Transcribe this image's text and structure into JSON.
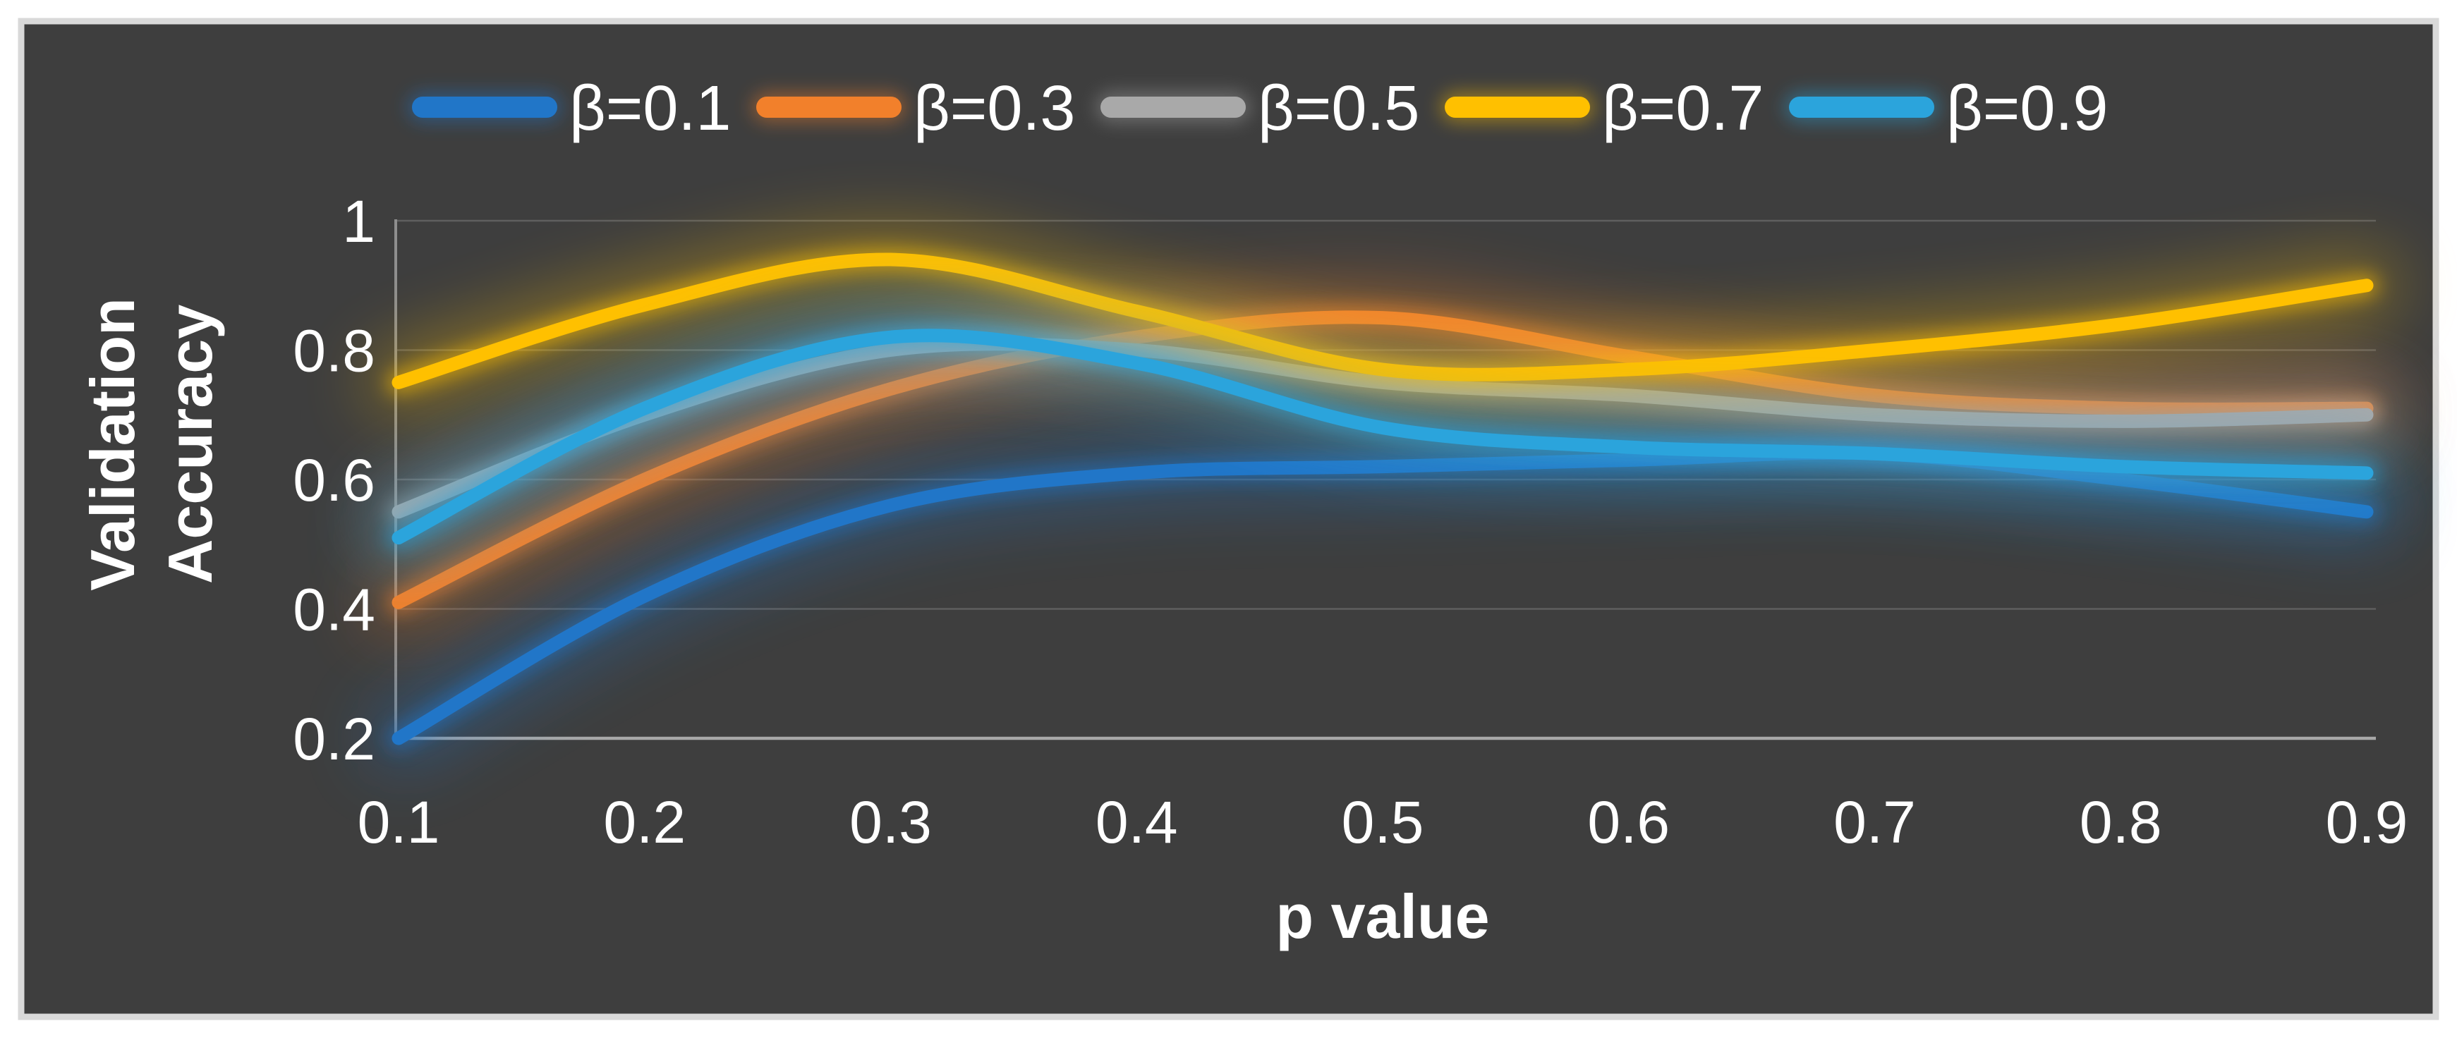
{
  "chart_data": {
    "type": "line",
    "title": "",
    "xlabel": "p value",
    "ylabel": "Validation Accuracy",
    "ylabel_lines": [
      "Validation",
      "Accuracy"
    ],
    "x": [
      0.1,
      0.2,
      0.3,
      0.4,
      0.5,
      0.6,
      0.7,
      0.8,
      0.9
    ],
    "x_tick_labels": [
      "0.1",
      "0.2",
      "0.3",
      "0.4",
      "0.5",
      "0.6",
      "0.7",
      "0.8",
      "0.9"
    ],
    "y_ticks": [
      {
        "label": "1",
        "value": 1.0
      },
      {
        "label": "0.8",
        "value": 0.8
      },
      {
        "label": "0.6",
        "value": 0.6
      },
      {
        "label": "0.4",
        "value": 0.4
      },
      {
        "label": "0.2",
        "value": 0.2
      }
    ],
    "xlim": [
      0.1,
      0.9
    ],
    "ylim": [
      0.2,
      1.0
    ],
    "grid": true,
    "smooth_lines": true,
    "glow_effect": true,
    "legend_position": "top",
    "series": [
      {
        "name": "beta-0.1",
        "label": "β=0.1",
        "color": "#2176C8",
        "values": [
          0.2,
          0.42,
          0.56,
          0.61,
          0.62,
          0.63,
          0.64,
          0.6,
          0.55
        ]
      },
      {
        "name": "beta-0.3",
        "label": "β=0.3",
        "color": "#F2802B",
        "values": [
          0.41,
          0.6,
          0.74,
          0.82,
          0.85,
          0.79,
          0.73,
          0.71,
          0.71
        ]
      },
      {
        "name": "beta-0.5",
        "label": "β=0.5",
        "color": "#A9A9A9",
        "values": [
          0.55,
          0.7,
          0.8,
          0.8,
          0.75,
          0.73,
          0.7,
          0.69,
          0.7
        ]
      },
      {
        "name": "beta-0.7",
        "label": "β=0.7",
        "color": "#FFC000",
        "values": [
          0.75,
          0.87,
          0.94,
          0.86,
          0.77,
          0.77,
          0.8,
          0.84,
          0.9
        ]
      },
      {
        "name": "beta-0.9",
        "label": "β=0.9",
        "color": "#2BA4DC",
        "values": [
          0.51,
          0.71,
          0.82,
          0.78,
          0.68,
          0.65,
          0.64,
          0.62,
          0.61
        ]
      }
    ],
    "colors": {
      "background": "#3E3E3E",
      "gridline": "#5F5F5F",
      "axis_line": "#A8A8A8",
      "left_axis_line": "#8E8E8E",
      "text": "#FFFFFF",
      "frame_border": "#D9D9D9"
    }
  }
}
